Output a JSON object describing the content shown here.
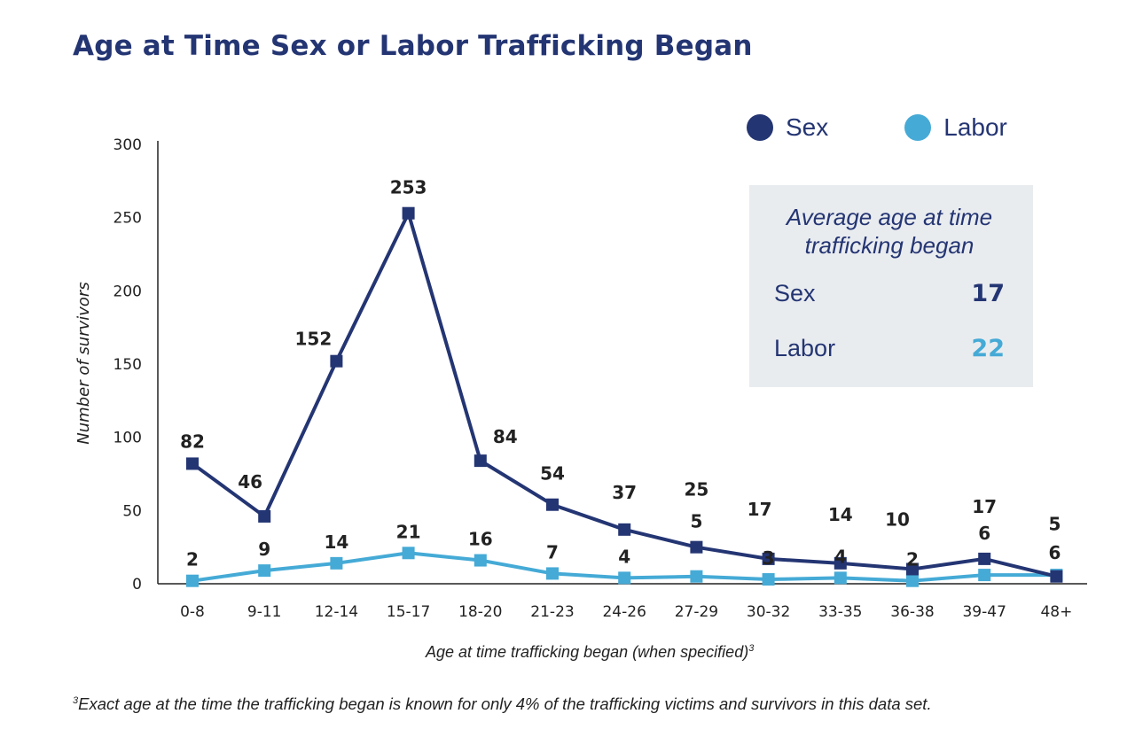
{
  "page": {
    "title": "Age at Time Sex or Labor Trafficking Began",
    "footnote_marker": "3",
    "footnote": "Exact age at the time the trafficking began is known for only 4% of the trafficking victims and survivors in this data set."
  },
  "average_box": {
    "title": "Average age at time trafficking began",
    "rows": [
      {
        "label": "Sex",
        "value": "17",
        "color": "#243573"
      },
      {
        "label": "Labor",
        "value": "22",
        "color": "#45aad6"
      }
    ]
  },
  "legend": [
    {
      "name": "Sex",
      "color": "#243573"
    },
    {
      "name": "Labor",
      "color": "#45aad6"
    }
  ],
  "chart_data": {
    "type": "line",
    "title": "Age at Time Sex or Labor Trafficking Began",
    "xlabel": "Age at time trafficking began (when specified)",
    "xlabel_marker": "3",
    "ylabel": "Number of survivors",
    "categories": [
      "0-8",
      "9-11",
      "12-14",
      "15-17",
      "18-20",
      "21-23",
      "24-26",
      "27-29",
      "30-32",
      "33-35",
      "36-38",
      "39-47",
      "48+"
    ],
    "ylim": [
      0,
      300
    ],
    "yticks": [
      0,
      50,
      100,
      150,
      200,
      250,
      300
    ],
    "grid": false,
    "legend_position": "top-right",
    "series": [
      {
        "name": "Sex",
        "color": "#243573",
        "values": [
          82,
          46,
          152,
          253,
          84,
          54,
          37,
          25,
          17,
          14,
          10,
          17,
          5
        ]
      },
      {
        "name": "Labor",
        "color": "#45aad6",
        "values": [
          2,
          9,
          14,
          21,
          16,
          7,
          4,
          5,
          3,
          4,
          2,
          6,
          6
        ]
      }
    ]
  }
}
